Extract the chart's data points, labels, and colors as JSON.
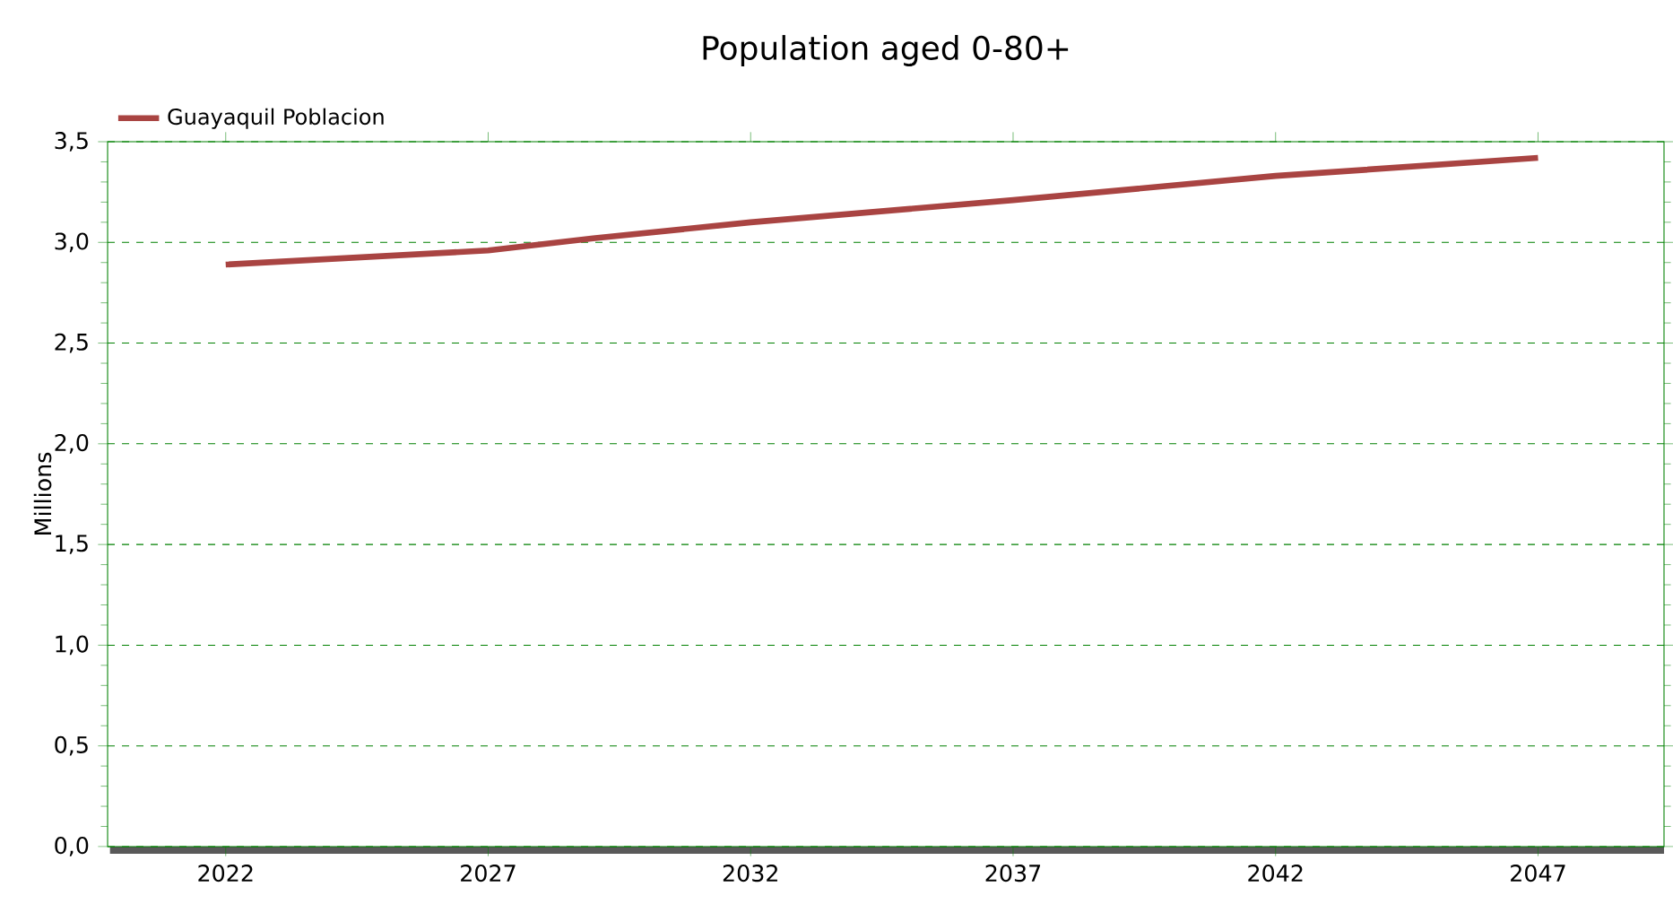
{
  "chart_data": {
    "type": "line",
    "title": "Population aged 0-80+",
    "ylabel": "Millions",
    "x": [
      2022,
      2027,
      2029,
      2032,
      2037,
      2042,
      2047
    ],
    "series": [
      {
        "name": "Guayaquil Poblacion",
        "color": "#a94442",
        "values": [
          2.89,
          2.96,
          3.02,
          3.1,
          3.21,
          3.33,
          3.42
        ]
      }
    ],
    "xlim": [
      2019.75,
      2049.4
    ],
    "ylim": [
      0,
      3.5
    ],
    "xticks": [
      2022,
      2027,
      2032,
      2037,
      2042,
      2047
    ],
    "yticks": [
      {
        "value": 0,
        "label": "0,0"
      },
      {
        "value": 0.5,
        "label": "0,5"
      },
      {
        "value": 1,
        "label": "1,0"
      },
      {
        "value": 1.5,
        "label": "1,5"
      },
      {
        "value": 2,
        "label": "2,0"
      },
      {
        "value": 2.5,
        "label": "2,5"
      },
      {
        "value": 3,
        "label": "3,0"
      },
      {
        "value": 3.5,
        "label": "3,5"
      }
    ],
    "grid": "y",
    "legend": "top left",
    "marker": "none",
    "line_style": "solid"
  }
}
